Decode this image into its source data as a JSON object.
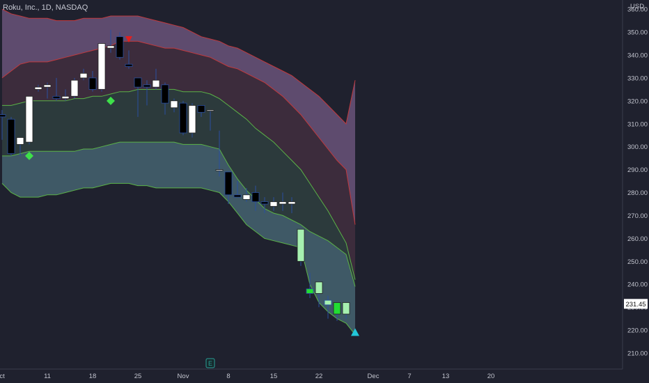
{
  "title": "Roku, Inc., 1D, NASDAQ",
  "currency": "USD",
  "colors": {
    "background": "#1f212e",
    "up_candle": "#ffffff",
    "down_candle": "#000000",
    "wick": "#2a4fa0",
    "band_outer_fill": "#5e4b6e",
    "band_mid_fill": "#3c2c3c",
    "band_inner_fill": "#2c3a3c",
    "band_bottom_fill": "#3f5966",
    "band_red_line": "#c2393c",
    "band_green_line": "#5bb347",
    "signal_buy": "#3ee04a",
    "signal_sell": "#e02020",
    "signal_triangle": "#22c6d8",
    "last_price_badge": "#ffffff"
  },
  "chart_data": {
    "type": "candlestick",
    "title": "Roku, Inc., 1D, NASDAQ",
    "ylim": [
      203,
      364
    ],
    "y_ticks": [
      "210.00",
      "220.00",
      "230.00",
      "240.00",
      "250.00",
      "260.00",
      "270.00",
      "280.00",
      "290.00",
      "300.00",
      "310.00",
      "320.00",
      "330.00",
      "340.00",
      "350.00",
      "360.00"
    ],
    "x_ticks": [
      {
        "label": "ct",
        "bar": 0
      },
      {
        "label": "11",
        "bar": 5
      },
      {
        "label": "18",
        "bar": 10
      },
      {
        "label": "25",
        "bar": 15
      },
      {
        "label": "Nov",
        "bar": 20
      },
      {
        "label": "8",
        "bar": 25
      },
      {
        "label": "15",
        "bar": 30
      },
      {
        "label": "22",
        "bar": 35
      },
      {
        "label": "Dec",
        "bar": 41
      },
      {
        "label": "7",
        "bar": 45
      },
      {
        "label": "13",
        "bar": 49
      },
      {
        "label": "20",
        "bar": 54
      }
    ],
    "last_price": "231.45",
    "candles": [
      {
        "o": 314,
        "h": 316,
        "l": 303,
        "c": 313
      },
      {
        "o": 312,
        "h": 313,
        "l": 296,
        "c": 297
      },
      {
        "o": 301,
        "h": 304,
        "l": 296,
        "c": 304
      },
      {
        "o": 302,
        "h": 322,
        "l": 301,
        "c": 322
      },
      {
        "o": 325,
        "h": 327,
        "l": 324,
        "c": 326
      },
      {
        "o": 326,
        "h": 328,
        "l": 321,
        "c": 327
      },
      {
        "o": 322,
        "h": 330,
        "l": 320,
        "c": 321
      },
      {
        "o": 321,
        "h": 325,
        "l": 320,
        "c": 322
      },
      {
        "o": 322,
        "h": 330,
        "l": 321,
        "c": 329
      },
      {
        "o": 330,
        "h": 334,
        "l": 329,
        "c": 332
      },
      {
        "o": 330,
        "h": 333,
        "l": 324,
        "c": 325
      },
      {
        "o": 325,
        "h": 345,
        "l": 324,
        "c": 345
      },
      {
        "o": 343,
        "h": 351,
        "l": 341,
        "c": 344
      },
      {
        "o": 348,
        "h": 350,
        "l": 338,
        "c": 339
      },
      {
        "o": 336,
        "h": 342,
        "l": 334,
        "c": 335
      },
      {
        "o": 330,
        "h": 330,
        "l": 313,
        "c": 326
      },
      {
        "o": 327,
        "h": 329,
        "l": 318,
        "c": 326
      },
      {
        "o": 326,
        "h": 334,
        "l": 325,
        "c": 329
      },
      {
        "o": 327,
        "h": 328,
        "l": 314,
        "c": 319
      },
      {
        "o": 317,
        "h": 321,
        "l": 315,
        "c": 320
      },
      {
        "o": 319,
        "h": 320,
        "l": 305,
        "c": 306
      },
      {
        "o": 306,
        "h": 319,
        "l": 304,
        "c": 318
      },
      {
        "o": 318,
        "h": 318,
        "l": 313,
        "c": 315
      },
      {
        "o": 316,
        "h": 316,
        "l": 307,
        "c": 316
      },
      {
        "o": 290,
        "h": 307,
        "l": 287,
        "c": 290
      },
      {
        "o": 289,
        "h": 289,
        "l": 275,
        "c": 279
      },
      {
        "o": 279,
        "h": 285,
        "l": 278,
        "c": 278
      },
      {
        "o": 277,
        "h": 282,
        "l": 276,
        "c": 279
      },
      {
        "o": 280,
        "h": 283,
        "l": 272,
        "c": 276
      },
      {
        "o": 276,
        "h": 278,
        "l": 271,
        "c": 275
      },
      {
        "o": 274,
        "h": 278,
        "l": 272,
        "c": 276
      },
      {
        "o": 275,
        "h": 280,
        "l": 272,
        "c": 276
      },
      {
        "o": 275,
        "h": 278,
        "l": 271,
        "c": 276
      },
      {
        "o": 250,
        "h": 264,
        "l": 248,
        "c": 264
      },
      {
        "o": 238,
        "h": 245,
        "l": 234,
        "c": 236
      },
      {
        "o": 236,
        "h": 241,
        "l": 230,
        "c": 241
      },
      {
        "o": 233,
        "h": 235,
        "l": 225,
        "c": 231
      },
      {
        "o": 227,
        "h": 232,
        "l": 224,
        "c": 232
      },
      {
        "o": 227,
        "h": 232,
        "l": 225,
        "c": 232
      }
    ],
    "special_candles": [
      {
        "bar": 33,
        "fill": "#a6f0b0"
      },
      {
        "bar": 34,
        "fill": "#22dd33"
      },
      {
        "bar": 35,
        "fill": "#a6f0b0"
      },
      {
        "bar": 36,
        "fill": "#a6f0b0"
      },
      {
        "bar": 37,
        "fill": "#22dd33"
      },
      {
        "bar": 38,
        "fill": "#a6f0b0"
      }
    ],
    "bands": {
      "start_bar": 0,
      "upper": [
        360,
        358,
        357,
        356,
        356,
        356,
        355,
        355,
        355,
        356,
        356,
        356,
        357,
        357,
        357,
        357,
        356,
        355,
        354,
        353,
        352,
        350,
        348,
        347,
        346,
        344,
        343,
        341,
        339,
        337,
        335,
        333,
        331,
        328,
        325,
        322,
        318,
        314,
        310,
        329
      ],
      "upper_mid": [
        330,
        333,
        336,
        337,
        337,
        337,
        338,
        339,
        340,
        341,
        342,
        343,
        344,
        346,
        346,
        346,
        345,
        344,
        343,
        343,
        342,
        341,
        340,
        339,
        337,
        335,
        334,
        332,
        330,
        328,
        325,
        322,
        318,
        314,
        309,
        304,
        299,
        294,
        290,
        266
      ],
      "middle": [
        318,
        318,
        319,
        320,
        320,
        320,
        320,
        320,
        321,
        321,
        322,
        322,
        323,
        324,
        324,
        325,
        325,
        325,
        325,
        325,
        324,
        324,
        324,
        323,
        321,
        318,
        315,
        312,
        308,
        305,
        302,
        298,
        294,
        290,
        284,
        278,
        272,
        265,
        258,
        242
      ],
      "lower_mid": [
        296,
        296,
        297,
        298,
        298,
        298,
        298,
        298,
        298,
        299,
        299,
        300,
        301,
        302,
        302,
        302,
        302,
        302,
        302,
        302,
        301,
        301,
        301,
        300,
        299,
        292,
        286,
        281,
        277,
        273,
        271,
        270,
        268,
        266,
        263,
        261,
        259,
        256,
        253,
        239
      ],
      "lower": [
        284,
        280,
        278,
        278,
        278,
        279,
        279,
        280,
        281,
        282,
        282,
        283,
        284,
        284,
        284,
        283,
        283,
        282,
        282,
        282,
        282,
        282,
        282,
        281,
        280,
        276,
        271,
        266,
        263,
        260,
        259,
        258,
        257,
        256,
        240,
        232,
        228,
        225,
        223,
        218
      ]
    },
    "signals": [
      {
        "type": "buy-diamond",
        "bar": 3,
        "price": 296
      },
      {
        "type": "buy-diamond",
        "bar": 12,
        "price": 320
      },
      {
        "type": "sell-triangle-down",
        "bar": 14,
        "price": 347
      },
      {
        "type": "triangle-up",
        "bar": 39,
        "price": 219
      }
    ],
    "earnings_bar": 23,
    "earnings_label": "E"
  }
}
